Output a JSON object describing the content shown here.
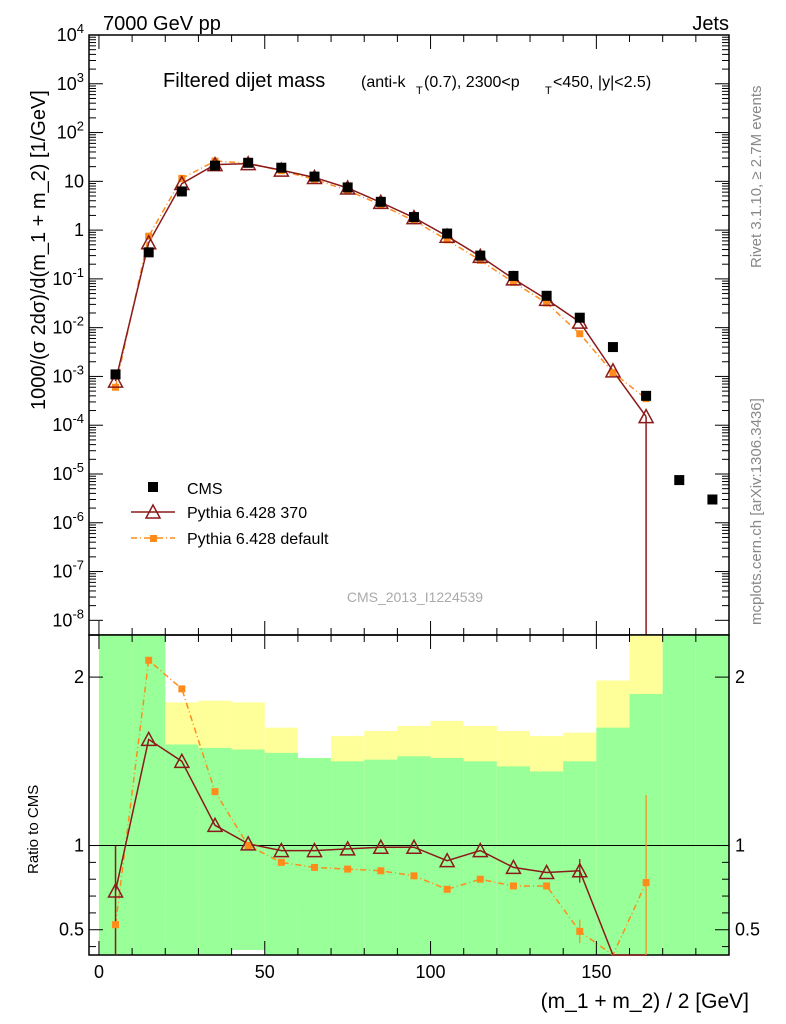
{
  "header": {
    "energy": "7000 GeV pp",
    "category": "Jets",
    "title_main": "Filtered dijet mass",
    "title_detail": "(anti-k",
    "title_sub_t1": "T",
    "title_detail2": "(0.7), 2300<p",
    "title_sub_t2": "T",
    "title_detail3": "<450, |y|<2.5)",
    "side_rivet": "Rivet 3.1.10, ≥ 2.7M events",
    "side_url": "mcplots.cern.ch [arXiv:1306.3436]",
    "watermark": "CMS_2013_I1224539"
  },
  "chart_data": {
    "type": "scatter",
    "x_bins": [
      5,
      15,
      25,
      35,
      45,
      55,
      65,
      75,
      85,
      95,
      105,
      115,
      125,
      135,
      145,
      155,
      165,
      175,
      185
    ],
    "top_panel": {
      "ylabel": "1000/(σ 2dσ)/d(m_1 + m_2) [1/GeV]",
      "yscale": "log",
      "ylim": [
        5e-09,
        10000
      ],
      "y_tick_labels": [
        "10^-8",
        "10^-7",
        "10^-6",
        "10^-5",
        "10^-4",
        "10^-3",
        "10^-2",
        "10^-1",
        "1",
        "10",
        "10^2",
        "10^3",
        "10^4"
      ],
      "series": [
        {
          "name": "CMS",
          "color": "#000000",
          "values": [
            0.0011,
            0.35,
            6.2,
            21,
            24,
            19,
            12.5,
            7.5,
            3.8,
            1.85,
            0.85,
            0.3,
            0.115,
            0.045,
            0.016,
            0.004,
            0.0004,
            7.5e-06,
            3e-06
          ]
        },
        {
          "name": "Pythia 6.428 370",
          "color": "#8b1a1a",
          "values": [
            0.0008,
            0.55,
            9,
            22,
            23,
            17,
            12,
            7.3,
            3.7,
            1.8,
            0.75,
            0.29,
            0.1,
            0.038,
            0.013,
            0.0013,
            0.00015,
            null,
            null
          ]
        },
        {
          "name": "Pythia 6.428 default",
          "color": "#ff8c1a",
          "values": [
            0.0006,
            0.75,
            11.5,
            26,
            23.5,
            16.5,
            11,
            6.5,
            3.3,
            1.55,
            0.63,
            0.24,
            0.085,
            0.032,
            0.0075,
            0.0012,
            0.00035,
            null,
            null
          ]
        }
      ]
    },
    "ratio_panel": {
      "ylabel": "Ratio to CMS",
      "ylim": [
        0.35,
        2.25
      ],
      "y_ticks": [
        0.5,
        1,
        2
      ],
      "y_tick_labels": [
        "0.5",
        "1",
        "2"
      ],
      "band_lower_green": [
        0.3,
        0.3,
        0.3,
        0.3,
        0.38,
        0.3,
        0.3,
        0.3,
        0.3,
        0.3,
        0.3,
        0.3,
        0.3,
        0.3,
        0.3,
        0.3,
        0.3,
        0.3,
        0.3
      ],
      "band_upper_green": [
        2.3,
        2.3,
        1.6,
        1.58,
        1.57,
        1.55,
        1.52,
        1.5,
        1.51,
        1.53,
        1.52,
        1.5,
        1.47,
        1.44,
        1.5,
        1.7,
        1.9,
        2.3,
        2.3
      ],
      "band_lower_yellow": [
        0.3,
        0.3,
        0.68,
        0.3,
        0.38,
        0.62,
        0.84,
        0.81,
        0.83,
        0.83,
        0.83,
        0.82,
        0.8,
        0.72,
        0.62,
        0.45,
        0.45,
        0.3,
        0.3
      ],
      "band_upper_yellow": [
        2.3,
        2.3,
        1.85,
        1.86,
        1.85,
        1.7,
        1.52,
        1.65,
        1.68,
        1.71,
        1.74,
        1.71,
        1.68,
        1.65,
        1.67,
        1.98,
        2.3,
        2.3,
        2.3
      ],
      "ratio_370": [
        0.73,
        1.63,
        1.5,
        1.12,
        1.01,
        0.97,
        0.97,
        0.98,
        0.99,
        0.99,
        0.91,
        0.97,
        0.87,
        0.84,
        0.85,
        0.3,
        0.3,
        null,
        null
      ],
      "ratio_default": [
        0.53,
        2.1,
        1.93,
        1.32,
        1.0,
        0.9,
        0.87,
        0.86,
        0.85,
        0.82,
        0.74,
        0.8,
        0.76,
        0.76,
        0.49,
        0.3,
        0.78,
        null,
        null
      ]
    },
    "x_axis": {
      "label": "(m_1 + m_2) / 2 [GeV]",
      "xlim": [
        -3,
        190
      ],
      "ticks": [
        0,
        50,
        100,
        150
      ],
      "tick_labels": [
        "0",
        "50",
        "100",
        "150"
      ]
    },
    "legend": {
      "position": "lower-left",
      "entries": [
        "CMS",
        "Pythia 6.428 370",
        "Pythia 6.428 default"
      ]
    }
  }
}
